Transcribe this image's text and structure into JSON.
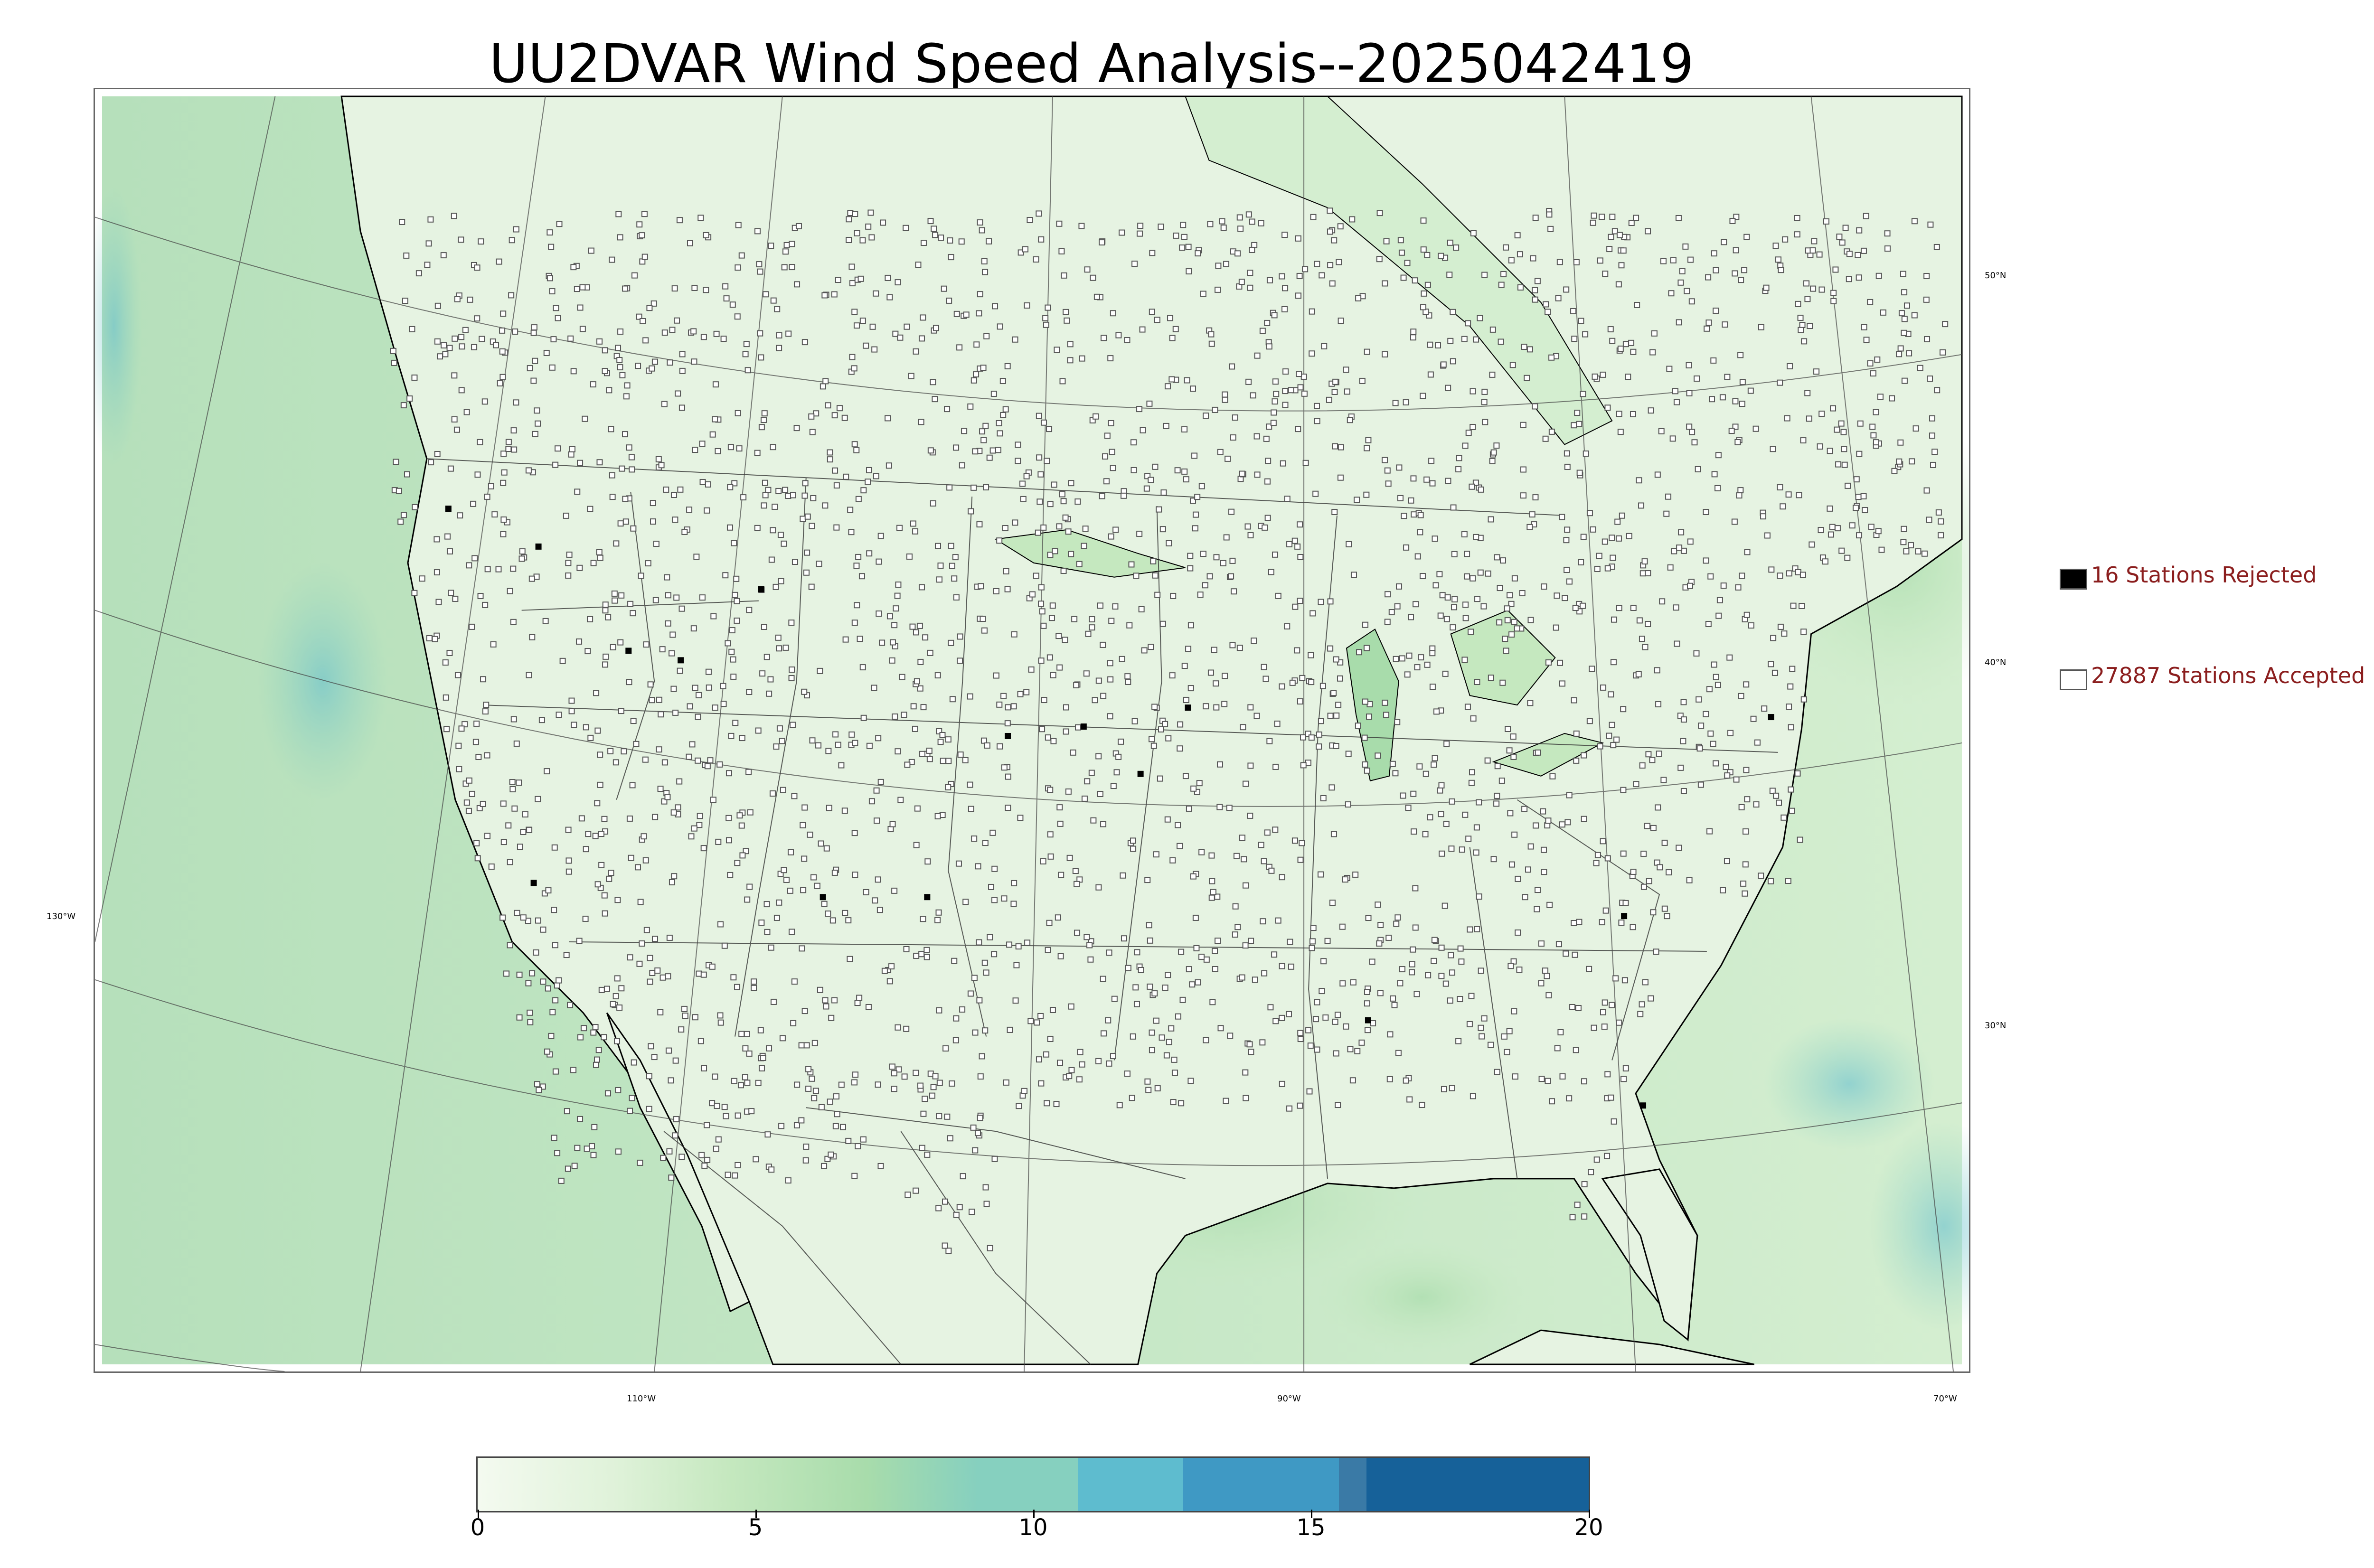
{
  "title": "UU2DVAR Wind Speed Analysis--2025042419",
  "map": {
    "latitude_labels": [
      "50°N",
      "40°N",
      "30°N"
    ],
    "longitude_labels": [
      "130°W",
      "110°W",
      "90°W",
      "70°W"
    ],
    "colors": {
      "ocean_base": "#c9e8c4",
      "land_base": "#e3f2df",
      "station_accepted": "#ffffff",
      "station_rejected": "#000000",
      "coastline": "#000000",
      "boundary": "#333333"
    }
  },
  "legend": {
    "rejected_label": "16 Stations Rejected",
    "accepted_label": "27887 Stations Accepted",
    "rejected_color": "#000000",
    "accepted_color": "#ffffff",
    "text_color": "#8b1e1e"
  },
  "colorbar": {
    "ticks": [
      "0",
      "5",
      "10",
      "15",
      "20"
    ],
    "range": [
      0,
      20
    ],
    "colors": [
      "#f4faf0",
      "#dff2d9",
      "#c5e8bf",
      "#a8dcab",
      "#86d0bf",
      "#5ebccf",
      "#3f99c4",
      "#3a7aa6",
      "#166199"
    ]
  }
}
